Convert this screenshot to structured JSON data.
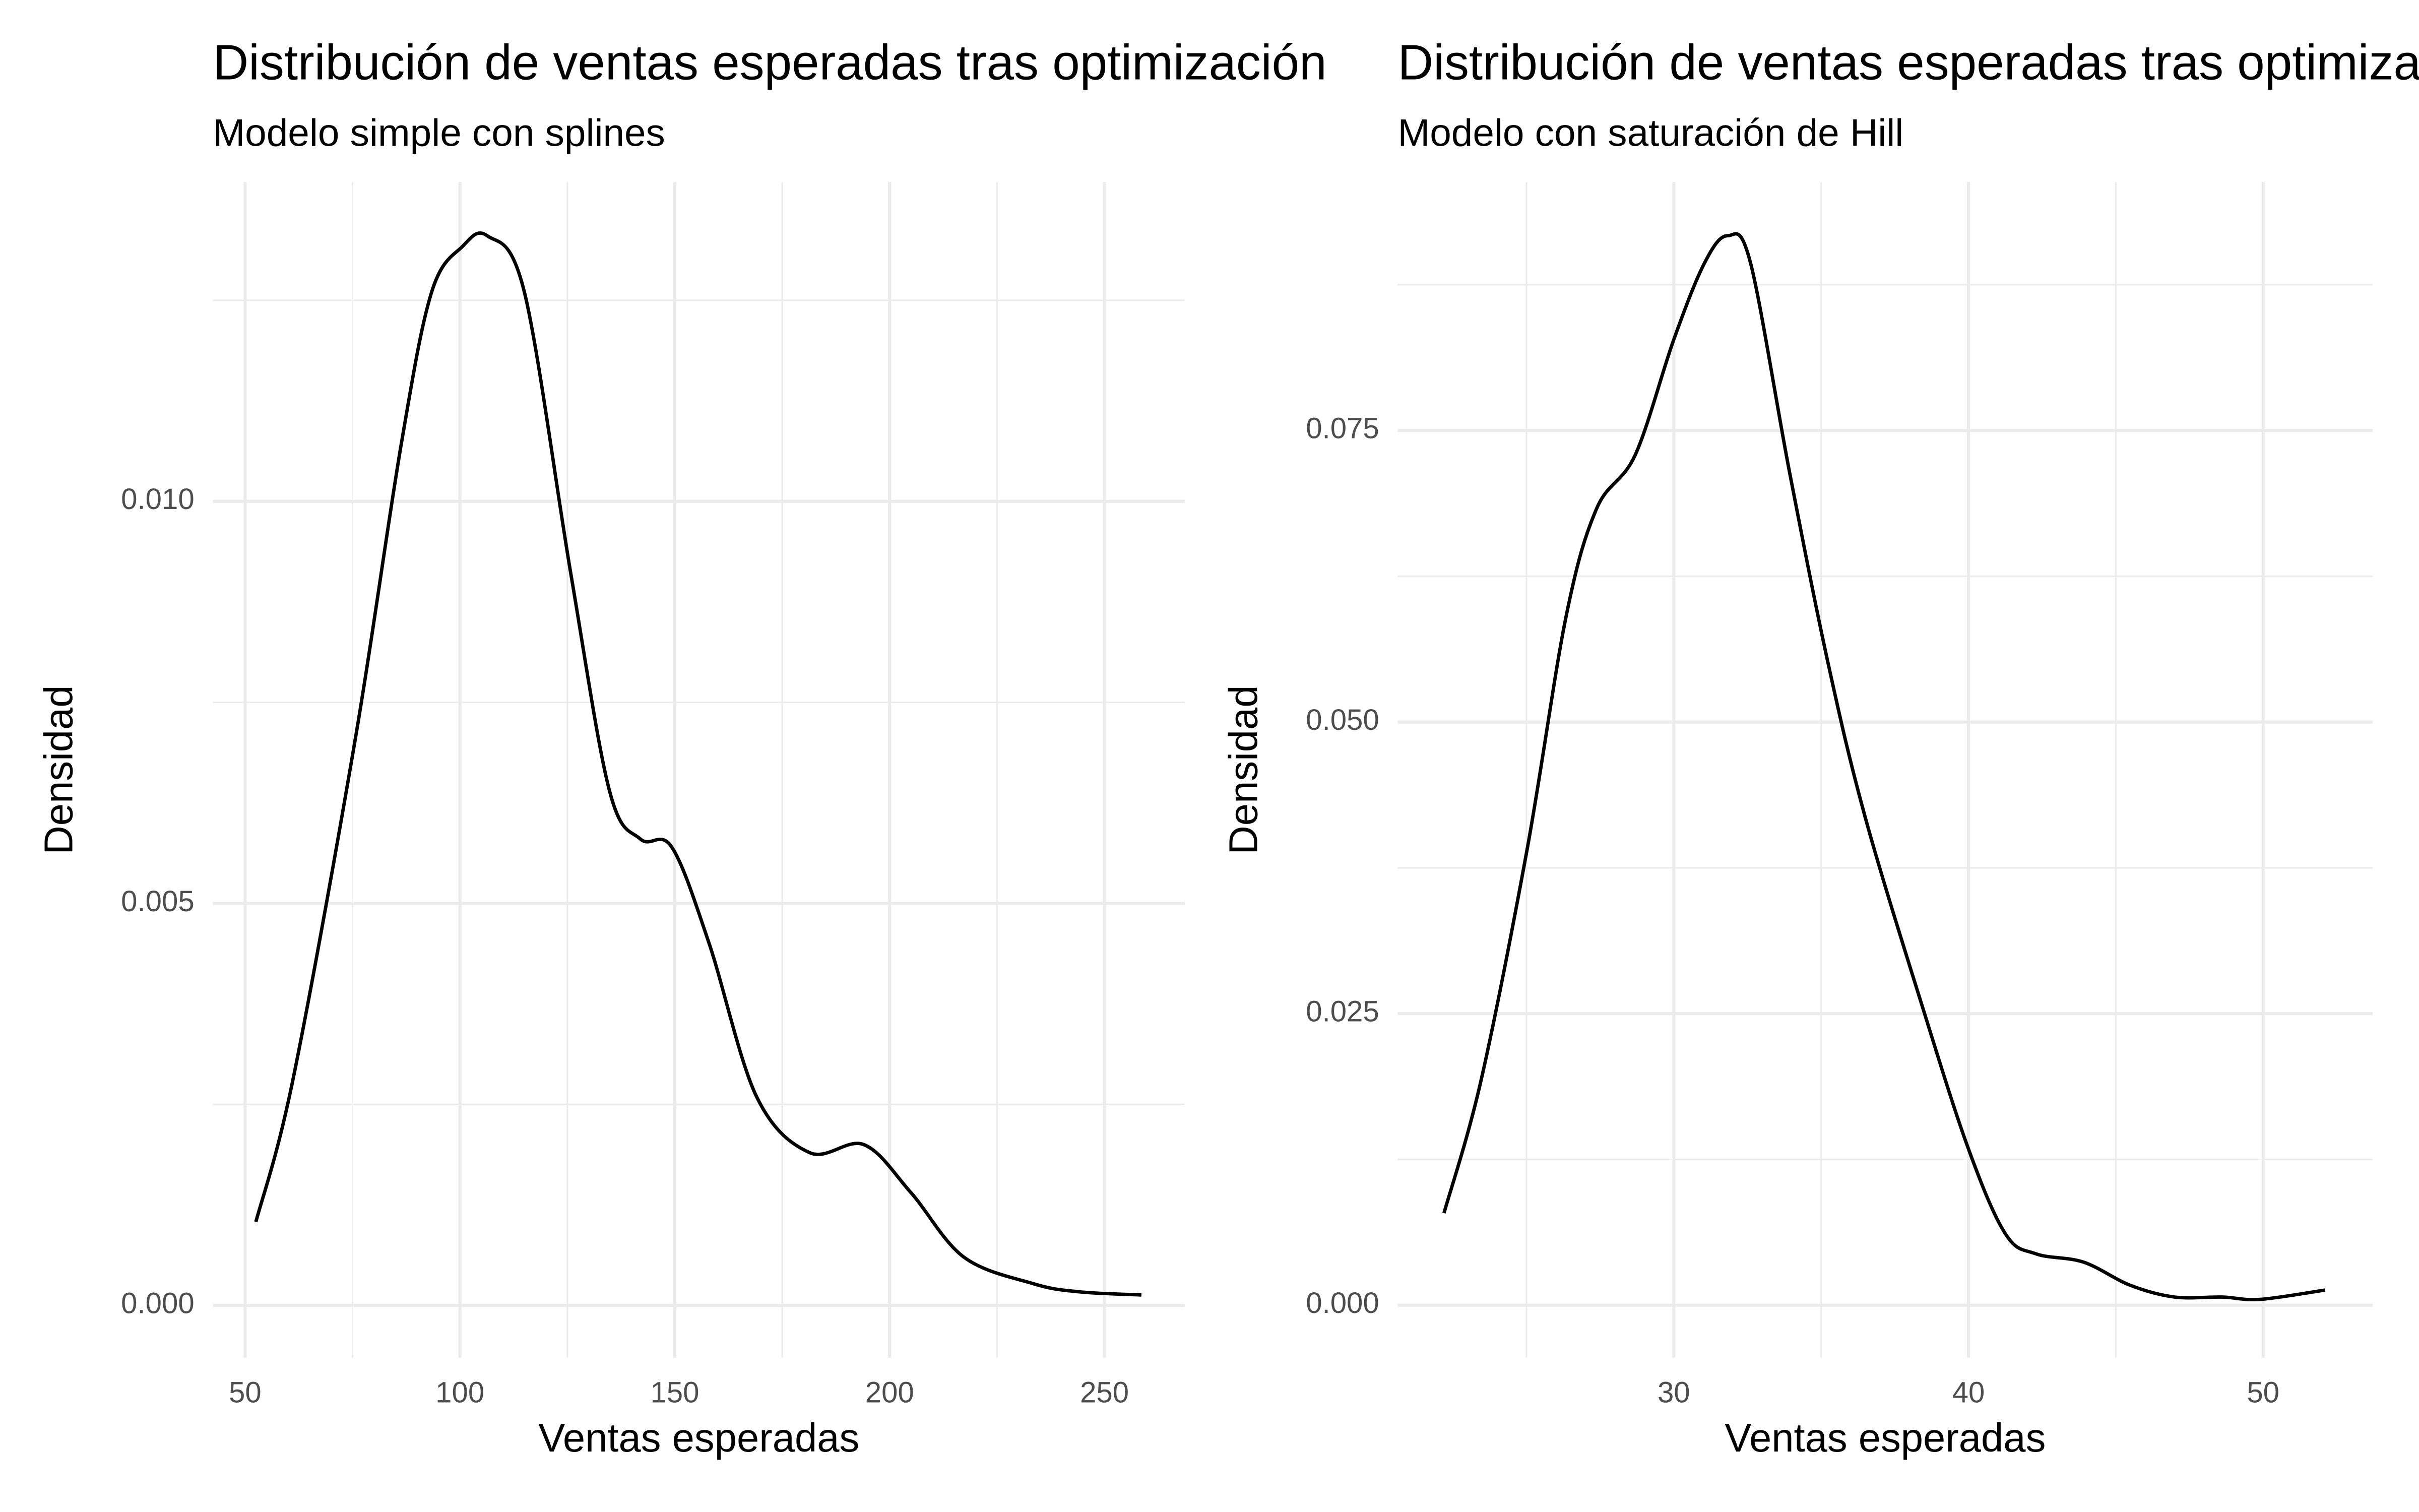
{
  "chart_data": [
    {
      "type": "line",
      "title": "Distribución de ventas esperadas tras optimización",
      "subtitle": "Modelo simple con splines",
      "x_label": "Ventas esperadas",
      "y_label": "Densidad",
      "x": [
        52.5,
        61.1,
        75.5,
        86.3,
        93.4,
        100.6,
        106.4,
        115,
        125.8,
        134.8,
        142,
        149.3,
        158,
        169,
        181.4,
        194,
        205,
        217.3,
        233.5,
        244,
        258.6
      ],
      "values": [
        0.00104,
        0.0028,
        0.007,
        0.0107,
        0.0126,
        0.01317,
        0.0133,
        0.0126,
        0.0091,
        0.0064,
        0.0058,
        0.0057,
        0.0045,
        0.0026,
        0.0019,
        0.002,
        0.0014,
        0.0006,
        0.00027,
        0.00017,
        0.00013
      ],
      "color": "#000000",
      "xlim": [
        42.5,
        268.7
      ],
      "xticks": [
        50,
        100,
        150,
        200,
        250
      ],
      "ylim": [
        -0.00065,
        0.01397
      ],
      "yticks": [
        {
          "value": 0,
          "label": "0.000"
        },
        0.005,
        {
          "value": 0.01,
          "label": "0.010"
        }
      ],
      "grid": true
    },
    {
      "type": "line",
      "title": "Distribución de ventas esperadas tras optimización",
      "subtitle": "Modelo con saturación de Hill",
      "x_label": "Ventas esperadas",
      "y_label": "Densidad",
      "x": [
        22.2,
        23.46,
        25.03,
        26.34,
        27.38,
        28.69,
        30,
        31.05,
        31.83,
        32.6,
        33.93,
        35.24,
        36.5,
        38.4,
        40,
        41.26,
        42.3,
        43.9,
        45.5,
        47,
        48.6,
        49.9,
        52.1
      ],
      "values": [
        0.0079,
        0.0193,
        0.0392,
        0.059,
        0.0683,
        0.0729,
        0.0828,
        0.0894,
        0.0917,
        0.0894,
        0.0714,
        0.055,
        0.0418,
        0.0259,
        0.0134,
        0.0061,
        0.0044,
        0.0037,
        0.0017,
        0.0007,
        0.0007,
        0.0005,
        0.0013
      ],
      "color": "#000000",
      "xlim": [
        20.63,
        53.72
      ],
      "xticks": [
        30,
        40,
        50
      ],
      "ylim": [
        -0.0045,
        0.0963
      ],
      "yticks": [
        {
          "value": 0,
          "label": "0.000"
        },
        0.025,
        {
          "value": 0.05,
          "label": "0.050"
        },
        0.075
      ],
      "grid": true
    }
  ]
}
